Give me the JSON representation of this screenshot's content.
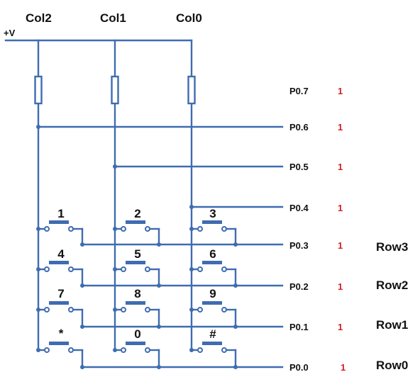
{
  "colors": {
    "wire": "#3f6cb0",
    "contact_fill": "#ffffff",
    "key_bar": "#3f6cb0",
    "text": "#111111",
    "value_text": "#d42020"
  },
  "supply": {
    "label": "+V"
  },
  "columns": [
    {
      "label": "Col2"
    },
    {
      "label": "Col1"
    },
    {
      "label": "Col0"
    }
  ],
  "ports": [
    {
      "label": "P0.7",
      "value": "1"
    },
    {
      "label": "P0.6",
      "value": "1"
    },
    {
      "label": "P0.5",
      "value": "1"
    },
    {
      "label": "P0.4",
      "value": "1"
    },
    {
      "label": "P0.3",
      "value": "1"
    },
    {
      "label": "P0.2",
      "value": "1"
    },
    {
      "label": "P0.1",
      "value": "1"
    },
    {
      "label": "P0.0",
      "value": "1"
    }
  ],
  "rows": [
    {
      "label": "Row3"
    },
    {
      "label": "Row2"
    },
    {
      "label": "Row1"
    },
    {
      "label": "Row0"
    }
  ],
  "keys": [
    [
      "1",
      "2",
      "3"
    ],
    [
      "4",
      "5",
      "6"
    ],
    [
      "7",
      "8",
      "9"
    ],
    [
      "*",
      "0",
      "#"
    ]
  ]
}
